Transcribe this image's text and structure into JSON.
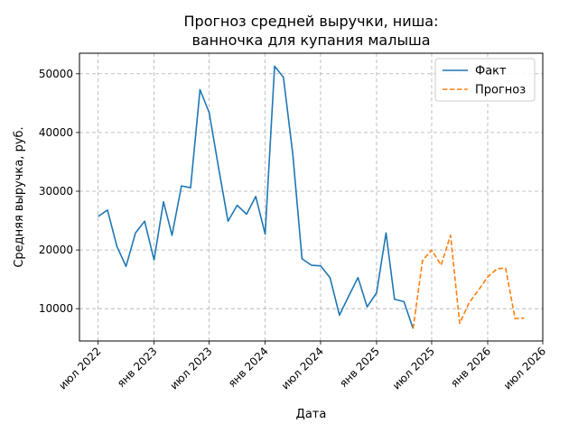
{
  "chart_data": {
    "type": "line",
    "title": [
      "Прогноз средней выручки, ниша:",
      "ванночка для купания малыша"
    ],
    "xlabel": "Дата",
    "ylabel": "Средняя выручка, руб.",
    "xlim": [
      "2022-05-01",
      "2026-07-01"
    ],
    "ylim": [
      4500,
      53500
    ],
    "y_ticks": [
      10000,
      20000,
      30000,
      40000,
      50000
    ],
    "x_ticks": [
      {
        "date": "2022-07-01",
        "label": "июл 2022"
      },
      {
        "date": "2023-01-01",
        "label": "янв 2023"
      },
      {
        "date": "2023-07-01",
        "label": "июл 2023"
      },
      {
        "date": "2024-01-01",
        "label": "янв 2024"
      },
      {
        "date": "2024-07-01",
        "label": "июл 2024"
      },
      {
        "date": "2025-01-01",
        "label": "янв 2025"
      },
      {
        "date": "2025-07-01",
        "label": "июл 2025"
      },
      {
        "date": "2026-01-01",
        "label": "янв 2026"
      },
      {
        "date": "2026-07-01",
        "label": "июл 2026"
      }
    ],
    "grid": true,
    "legend_position": "top-right",
    "series": [
      {
        "name": "Факт",
        "color": "#1f77b4",
        "style": "solid",
        "x": [
          "2022-07-01",
          "2022-08-01",
          "2022-09-01",
          "2022-10-01",
          "2022-11-01",
          "2022-12-01",
          "2023-01-01",
          "2023-02-01",
          "2023-03-01",
          "2023-04-01",
          "2023-05-01",
          "2023-06-01",
          "2023-07-01",
          "2023-08-01",
          "2023-09-01",
          "2023-10-01",
          "2023-11-01",
          "2023-12-01",
          "2024-01-01",
          "2024-02-01",
          "2024-03-01",
          "2024-04-01",
          "2024-05-01",
          "2024-06-01",
          "2024-07-01",
          "2024-08-01",
          "2024-09-01",
          "2024-10-01",
          "2024-11-01",
          "2024-12-01",
          "2025-01-01",
          "2025-02-01",
          "2025-03-01",
          "2025-04-01",
          "2025-05-01"
        ],
        "values": [
          25700,
          26800,
          20600,
          17200,
          22900,
          24900,
          18300,
          28200,
          22500,
          30900,
          30600,
          47300,
          43400,
          34000,
          24900,
          27600,
          26100,
          29100,
          22700,
          51300,
          49400,
          36200,
          18500,
          17400,
          17300,
          15300,
          8900,
          12100,
          15300,
          10300,
          12700,
          22900,
          11600,
          11200,
          6600
        ]
      },
      {
        "name": "Прогноз",
        "color": "#ff7f0e",
        "style": "dashed",
        "x": [
          "2025-05-01",
          "2025-06-01",
          "2025-07-01",
          "2025-08-01",
          "2025-09-01",
          "2025-10-01",
          "2025-11-01",
          "2025-12-01",
          "2026-01-01",
          "2026-02-01",
          "2026-03-01",
          "2026-04-01",
          "2026-05-01"
        ],
        "values": [
          6600,
          18200,
          20000,
          17400,
          22500,
          7500,
          11000,
          13100,
          15400,
          16800,
          16900,
          8300,
          8400
        ]
      }
    ]
  }
}
